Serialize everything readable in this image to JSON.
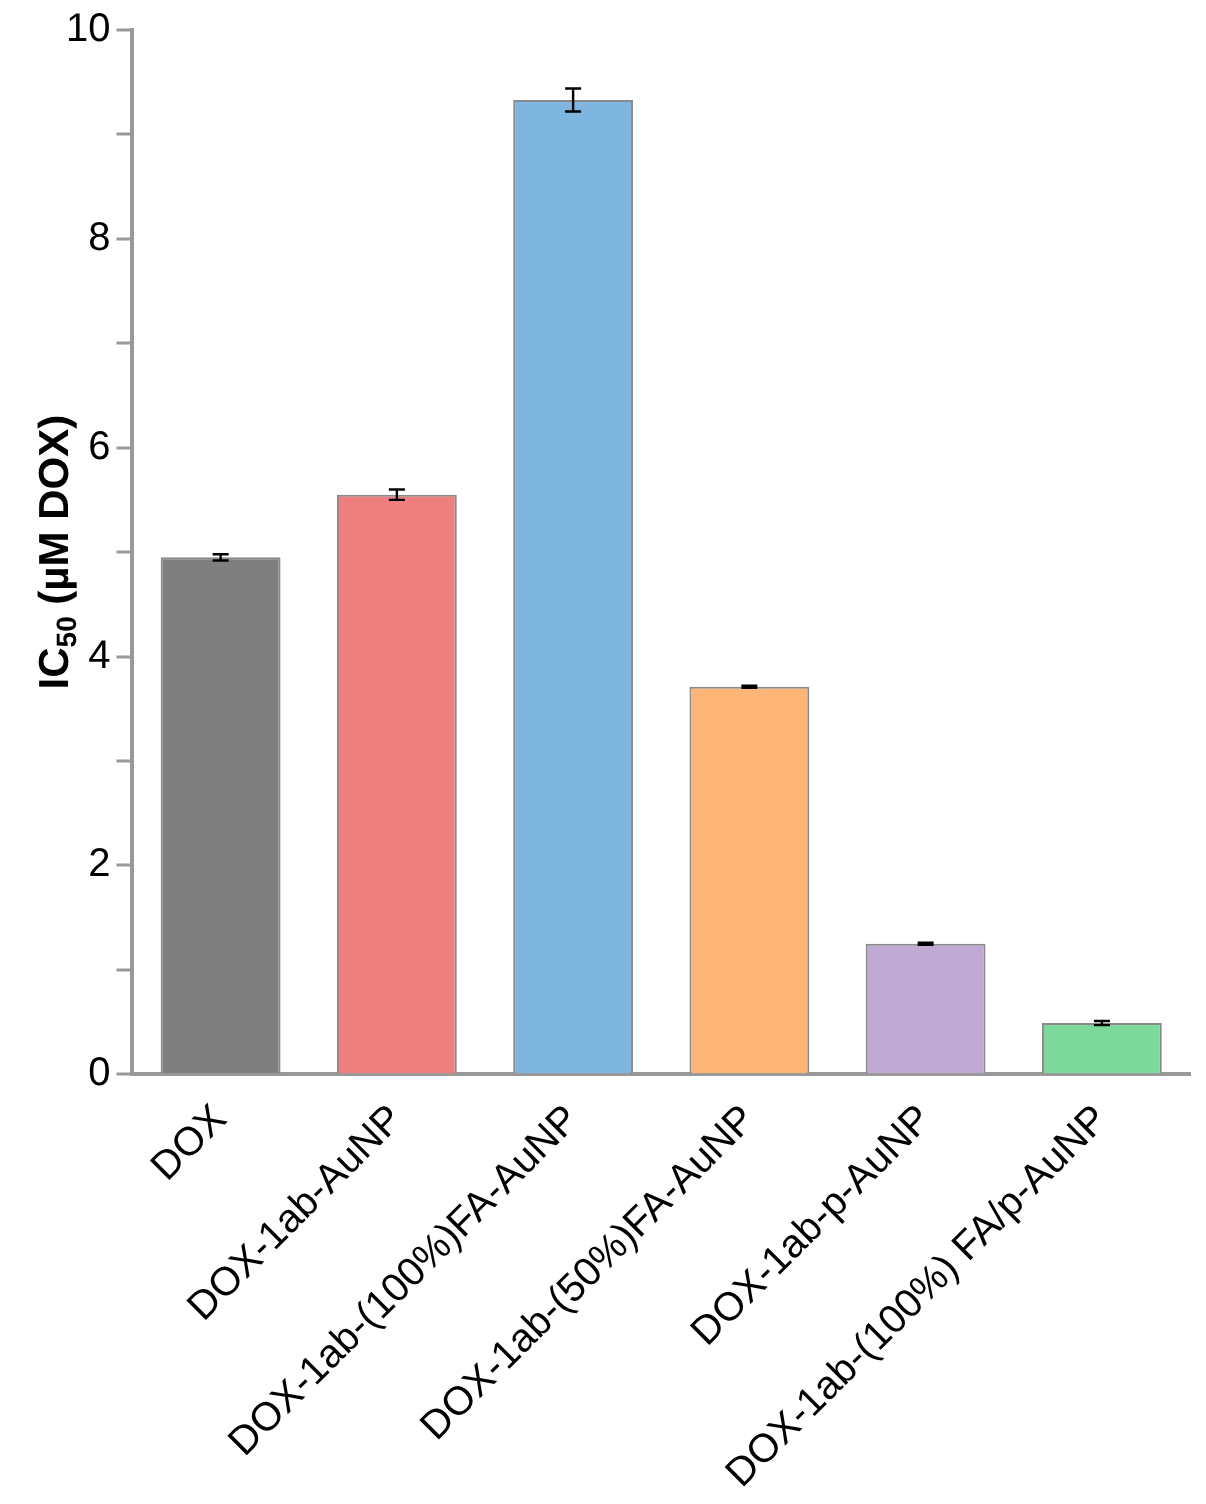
{
  "chart_data": {
    "type": "bar",
    "ylabel": "IC$_{50}$ (µM DOX)",
    "categories": [
      "DOX",
      "DOX-1ab-AuNP",
      "DOX-1ab-(100%)FA-AuNP",
      "DOX-1ab-(50%)FA-AuNP",
      "DOX-1ab-p-AuNP",
      "DOX-1ab-(100%) FA/p-AuNP"
    ],
    "values": [
      4.95,
      5.55,
      9.33,
      3.71,
      1.25,
      0.49
    ],
    "errors": [
      0.03,
      0.05,
      0.11,
      0.01,
      0.01,
      0.02
    ],
    "colors": [
      "#7f7f7f",
      "#ef7e7e",
      "#7fb6df",
      "#fdb678",
      "#c0a9d3",
      "#7dd99b"
    ],
    "ylim": [
      0,
      10
    ],
    "yticks": [
      0,
      {
        "value": 1,
        "label": null
      },
      2,
      {
        "value": 3,
        "label": null
      },
      4,
      {
        "value": 5,
        "label": null
      },
      6,
      {
        "value": 7,
        "label": null
      },
      8,
      {
        "value": 9,
        "label": null
      },
      10
    ],
    "grid": false,
    "legend": false
  }
}
